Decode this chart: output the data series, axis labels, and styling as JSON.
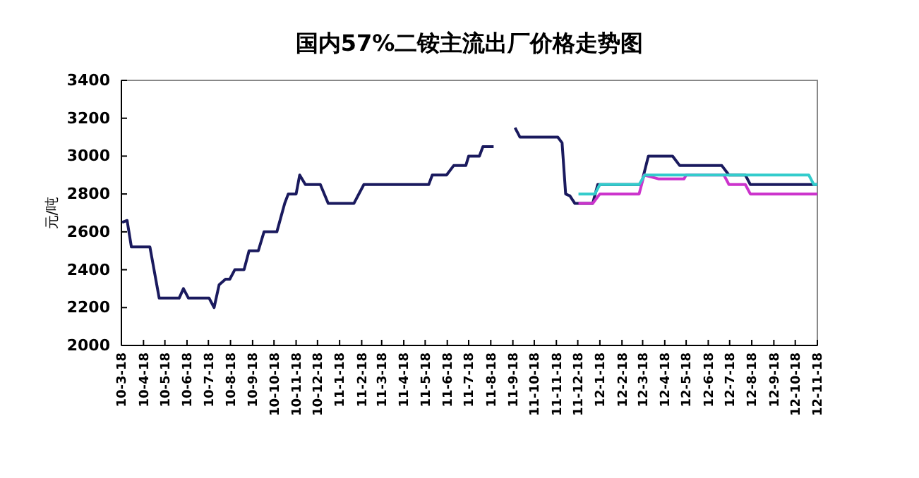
{
  "chart_data": {
    "type": "line",
    "title": "国内57%二铵主流出厂价格走势图",
    "ylabel": "元/吨",
    "xlim": [
      "2010-03-18",
      "2012-11-18"
    ],
    "xticks": [
      {
        "value": "2010-03-18",
        "label": "10-3-18"
      },
      {
        "value": "2010-04-18",
        "label": "10-4-18"
      },
      {
        "value": "2010-05-18",
        "label": "10-5-18"
      },
      {
        "value": "2010-06-18",
        "label": "10-6-18"
      },
      {
        "value": "2010-07-18",
        "label": "10-7-18"
      },
      {
        "value": "2010-08-18",
        "label": "10-8-18"
      },
      {
        "value": "2010-09-18",
        "label": "10-9-18"
      },
      {
        "value": "2010-10-18",
        "label": "10-10-18"
      },
      {
        "value": "2010-11-18",
        "label": "10-11-18"
      },
      {
        "value": "2010-12-18",
        "label": "10-12-18"
      },
      {
        "value": "2011-01-18",
        "label": "11-1-18"
      },
      {
        "value": "2011-02-18",
        "label": "11-2-18"
      },
      {
        "value": "2011-03-18",
        "label": "11-3-18"
      },
      {
        "value": "2011-04-18",
        "label": "11-4-18"
      },
      {
        "value": "2011-05-18",
        "label": "11-5-18"
      },
      {
        "value": "2011-06-18",
        "label": "11-6-18"
      },
      {
        "value": "2011-07-18",
        "label": "11-7-18"
      },
      {
        "value": "2011-08-18",
        "label": "11-8-18"
      },
      {
        "value": "2011-09-18",
        "label": "11-9-18"
      },
      {
        "value": "2011-10-18",
        "label": "11-10-18"
      },
      {
        "value": "2011-11-18",
        "label": "11-11-18"
      },
      {
        "value": "2011-12-18",
        "label": "11-12-18"
      },
      {
        "value": "2012-01-18",
        "label": "12-1-18"
      },
      {
        "value": "2012-02-18",
        "label": "12-2-18"
      },
      {
        "value": "2012-03-18",
        "label": "12-3-18"
      },
      {
        "value": "2012-04-18",
        "label": "12-4-18"
      },
      {
        "value": "2012-05-18",
        "label": "12-5-18"
      },
      {
        "value": "2012-06-18",
        "label": "12-6-18"
      },
      {
        "value": "2012-07-18",
        "label": "12-7-18"
      },
      {
        "value": "2012-08-18",
        "label": "12-8-18"
      },
      {
        "value": "2012-09-18",
        "label": "12-9-18"
      },
      {
        "value": "2012-10-18",
        "label": "12-10-18"
      },
      {
        "value": "2012-11-18",
        "label": "12-11-18"
      }
    ],
    "ylim": [
      2000,
      3400
    ],
    "yticks": [
      2000,
      2200,
      2400,
      2600,
      2800,
      3000,
      3200,
      3400
    ],
    "grid": false,
    "marker": "none",
    "line_style": "solid",
    "series": [
      {
        "color": "#1a1a5e",
        "x": [
          "2010-03-19",
          "2010-03-26",
          "2010-04-01",
          "2010-04-22",
          "2010-04-27",
          "2010-05-10",
          "2010-06-07",
          "2010-06-13",
          "2010-06-20",
          "2010-07-19",
          "2010-07-26",
          "2010-08-02",
          "2010-08-11",
          "2010-08-17",
          "2010-08-24",
          "2010-09-06",
          "2010-09-13",
          "2010-09-26",
          "2010-10-04",
          "2010-10-22",
          "2010-11-02",
          "2010-11-07",
          "2010-11-18",
          "2010-11-23",
          "2010-12-01",
          "2010-12-22",
          "2011-01-02",
          "2011-02-07",
          "2011-02-21",
          "2011-05-23",
          "2011-05-28",
          "2011-06-17",
          "2011-06-27",
          "2011-07-14",
          "2011-07-18",
          "2011-08-02",
          "2011-08-07",
          "2011-08-22",
          "2011-09-05",
          "2011-09-21",
          "2011-09-28",
          "2011-11-20",
          "2011-11-26",
          "2011-12-01",
          "2011-12-07",
          "2011-12-14",
          "2012-01-08",
          "2012-01-15",
          "2012-01-21",
          "2012-03-16",
          "2012-03-26",
          "2012-04-29",
          "2012-05-09",
          "2012-07-07",
          "2012-07-17",
          "2012-08-09",
          "2012-08-16",
          "2012-11-18"
        ],
        "values": [
          2650,
          2660,
          2520,
          2520,
          2520,
          2250,
          2250,
          2300,
          2250,
          2250,
          2200,
          2320,
          2350,
          2350,
          2400,
          2400,
          2500,
          2500,
          2600,
          2600,
          2750,
          2800,
          2800,
          2900,
          2850,
          2850,
          2750,
          2750,
          2850,
          2850,
          2900,
          2900,
          2950,
          2950,
          3000,
          3000,
          3050,
          3050,
          null,
          3150,
          3100,
          3100,
          3070,
          2800,
          2790,
          2750,
          2750,
          2850,
          2850,
          2850,
          3000,
          3000,
          2950,
          2950,
          2900,
          2900,
          2850,
          2850
        ]
      },
      {
        "color": "#cc33cc",
        "x": [
          "2011-12-19",
          "2012-01-08",
          "2012-01-18",
          "2012-03-13",
          "2012-03-20",
          "2012-04-09",
          "2012-05-15",
          "2012-05-18",
          "2012-07-10",
          "2012-07-17",
          "2012-08-09",
          "2012-08-16",
          "2012-11-18"
        ],
        "values": [
          2750,
          2750,
          2800,
          2800,
          2900,
          2880,
          2880,
          2900,
          2900,
          2850,
          2850,
          2800,
          2800
        ]
      },
      {
        "color": "#33cccc",
        "x": [
          "2011-12-19",
          "2012-01-11",
          "2012-01-18",
          "2012-03-13",
          "2012-03-21",
          "2012-11-06",
          "2012-11-13",
          "2012-11-18"
        ],
        "values": [
          2800,
          2800,
          2850,
          2850,
          2900,
          2900,
          2850,
          2850
        ]
      }
    ]
  }
}
